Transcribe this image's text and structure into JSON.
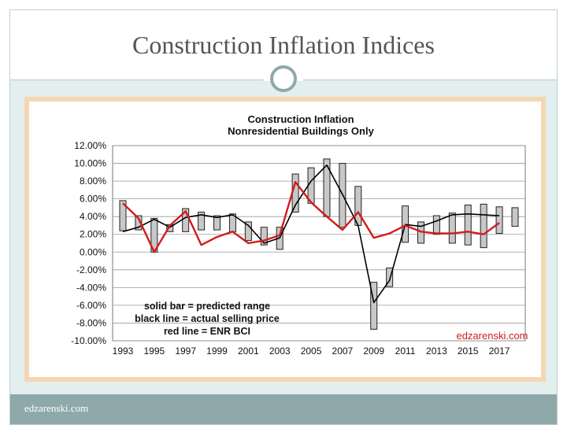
{
  "slide": {
    "title": "Construction Inflation Indices",
    "footer": "edzarenski.com"
  },
  "chart_data": {
    "type": "bar",
    "title": "Construction  Inflation",
    "subtitle": "Nonresidential Buildings Only",
    "x_tick_labels": [
      "1993",
      "1995",
      "1997",
      "1999",
      "2001",
      "2003",
      "2005",
      "2007",
      "2009",
      "2011",
      "2013",
      "2015",
      "2017"
    ],
    "ylim": [
      -10,
      12
    ],
    "y_ticks": [
      12,
      10,
      8,
      6,
      4,
      2,
      0,
      -2,
      -4,
      -6,
      -8,
      -10
    ],
    "y_tick_labels": [
      "12.00%",
      "10.00%",
      "8.00%",
      "6.00%",
      "4.00%",
      "2.00%",
      "0.00%",
      "-2.00%",
      "-4.00%",
      "-6.00%",
      "-8.00%",
      "-10.00%"
    ],
    "grid": true,
    "years": [
      1993,
      1994,
      1995,
      1996,
      1997,
      1998,
      1999,
      2000,
      2001,
      2002,
      2003,
      2004,
      2005,
      2006,
      2007,
      2008,
      2009,
      2010,
      2011,
      2012,
      2013,
      2014,
      2015,
      2016,
      2017,
      2018
    ],
    "predicted_range": [
      [
        2.4,
        5.8
      ],
      [
        2.5,
        4.1
      ],
      [
        0.0,
        3.8
      ],
      [
        2.3,
        3.1
      ],
      [
        2.3,
        4.9
      ],
      [
        2.5,
        4.5
      ],
      [
        2.5,
        4.1
      ],
      [
        2.3,
        4.3
      ],
      [
        1.3,
        3.4
      ],
      [
        0.8,
        2.8
      ],
      [
        0.3,
        2.8
      ],
      [
        4.5,
        8.8
      ],
      [
        5.5,
        9.5
      ],
      [
        4.0,
        10.5
      ],
      [
        2.8,
        10.0
      ],
      [
        3.0,
        7.4
      ],
      [
        -8.7,
        -3.4
      ],
      [
        -3.9,
        -1.8
      ],
      [
        1.1,
        5.2
      ],
      [
        1.0,
        3.4
      ],
      [
        2.0,
        4.1
      ],
      [
        1.0,
        4.4
      ],
      [
        0.8,
        5.3
      ],
      [
        0.5,
        5.4
      ],
      [
        2.1,
        5.1
      ],
      [
        2.9,
        5.0
      ]
    ],
    "series": [
      {
        "name": "actual selling price",
        "color": "#000000",
        "values": [
          2.3,
          2.8,
          3.7,
          2.8,
          3.9,
          4.2,
          3.9,
          4.2,
          3.0,
          1.0,
          1.6,
          5.3,
          8.0,
          9.8,
          6.5,
          3.0,
          -5.7,
          -3.2,
          3.1,
          2.9,
          3.5,
          4.2,
          4.3,
          4.2,
          4.1
        ]
      },
      {
        "name": "ENR BCI",
        "color": "#d11c1c",
        "values": [
          5.5,
          3.8,
          0.0,
          3.0,
          4.6,
          0.8,
          1.7,
          2.3,
          1.0,
          1.3,
          1.9,
          7.9,
          5.6,
          4.0,
          2.5,
          4.5,
          1.6,
          2.1,
          3.0,
          2.3,
          2.1,
          2.1,
          2.3,
          2.0,
          3.3
        ]
      }
    ],
    "annotations": [
      "solid bar = predicted range",
      "black line = actual selling price",
      "red line = ENR BCI"
    ],
    "watermark": "edzarenski.com",
    "colors": {
      "bar_fill": "#c8c8c8",
      "bar_stroke": "#222222",
      "watermark": "#d11c1c"
    }
  }
}
